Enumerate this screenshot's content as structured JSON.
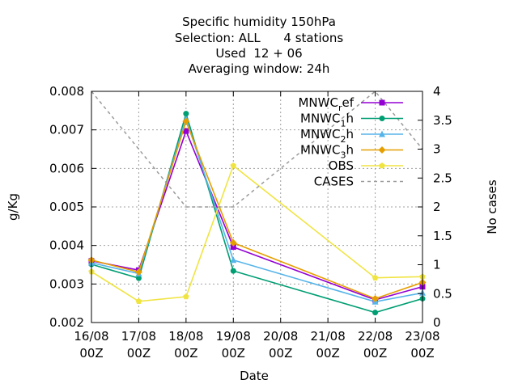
{
  "chart_data": {
    "type": "line",
    "title_lines": [
      "Specific humidity 150hPa",
      "Selection: ALL      4 stations",
      "Used  12 + 06",
      "Averaging window: 24h"
    ],
    "xlabel": "Date",
    "ylabel": "g/Kg",
    "y2label": "No cases",
    "x_ticks": [
      [
        "16/08",
        "00Z"
      ],
      [
        "17/08",
        "00Z"
      ],
      [
        "18/08",
        "00Z"
      ],
      [
        "19/08",
        "00Z"
      ],
      [
        "20/08",
        "00Z"
      ],
      [
        "21/08",
        "00Z"
      ],
      [
        "22/08",
        "00Z"
      ],
      [
        "23/08",
        "00Z"
      ]
    ],
    "ylim": [
      0.002,
      0.008
    ],
    "y_ticks": [
      "0.002",
      "0.003",
      "0.004",
      "0.005",
      "0.006",
      "0.007",
      "0.008"
    ],
    "y2lim": [
      0,
      4
    ],
    "y2_ticks": [
      "0",
      "0.5",
      "1",
      "1.5",
      "2",
      "2.5",
      "3",
      "3.5",
      "4"
    ],
    "grid": true,
    "legend_position": "top-right",
    "series": [
      {
        "name": "MNWC_ref",
        "label_parts": [
          "MNWC",
          "r",
          "ef"
        ],
        "color": "#9400d3",
        "marker": "square",
        "axis": "y",
        "points": [
          [
            0,
            0.0036
          ],
          [
            1,
            0.00336
          ],
          [
            2,
            0.00697
          ],
          [
            3,
            0.00396
          ],
          [
            6,
            0.00259
          ],
          [
            7,
            0.00293
          ]
        ]
      },
      {
        "name": "MNWC_1h",
        "label_parts": [
          "MNWC",
          "1",
          "h"
        ],
        "color": "#009e73",
        "marker": "circle",
        "axis": "y",
        "points": [
          [
            0,
            0.00351
          ],
          [
            1,
            0.00315
          ],
          [
            2,
            0.00742
          ],
          [
            3,
            0.00334
          ],
          [
            6,
            0.00226
          ],
          [
            7,
            0.00262
          ]
        ]
      },
      {
        "name": "MNWC_2h",
        "label_parts": [
          "MNWC",
          "2",
          "h"
        ],
        "color": "#56b4e9",
        "marker": "triangle",
        "axis": "y",
        "points": [
          [
            0,
            0.00355
          ],
          [
            1,
            0.00327
          ],
          [
            2,
            0.00728
          ],
          [
            3,
            0.00362
          ],
          [
            6,
            0.00254
          ],
          [
            7,
            0.00277
          ]
        ]
      },
      {
        "name": "MNWC_3h",
        "label_parts": [
          "MNWC",
          "3",
          "h"
        ],
        "color": "#e69f00",
        "marker": "diamond",
        "axis": "y",
        "points": [
          [
            0,
            0.00362
          ],
          [
            1,
            0.00331
          ],
          [
            2,
            0.00722
          ],
          [
            3,
            0.00407
          ],
          [
            6,
            0.00262
          ],
          [
            7,
            0.00304
          ]
        ]
      },
      {
        "name": "OBS",
        "label_parts": [
          "OBS",
          "",
          ""
        ],
        "color": "#f0e442",
        "marker": "pentagon",
        "axis": "y",
        "points": [
          [
            0,
            0.00332
          ],
          [
            1,
            0.00255
          ],
          [
            2,
            0.00267
          ],
          [
            3,
            0.00607
          ],
          [
            6,
            0.00316
          ],
          [
            7,
            0.00319
          ]
        ]
      },
      {
        "name": "CASES",
        "label_parts": [
          "CASES",
          "",
          ""
        ],
        "color": "#9a9a9a",
        "marker": "none",
        "dashed": true,
        "axis": "y2",
        "points": [
          [
            0,
            4
          ],
          [
            1,
            3
          ],
          [
            2,
            2
          ],
          [
            3,
            2
          ],
          [
            6,
            4
          ],
          [
            7,
            3
          ]
        ]
      }
    ]
  }
}
